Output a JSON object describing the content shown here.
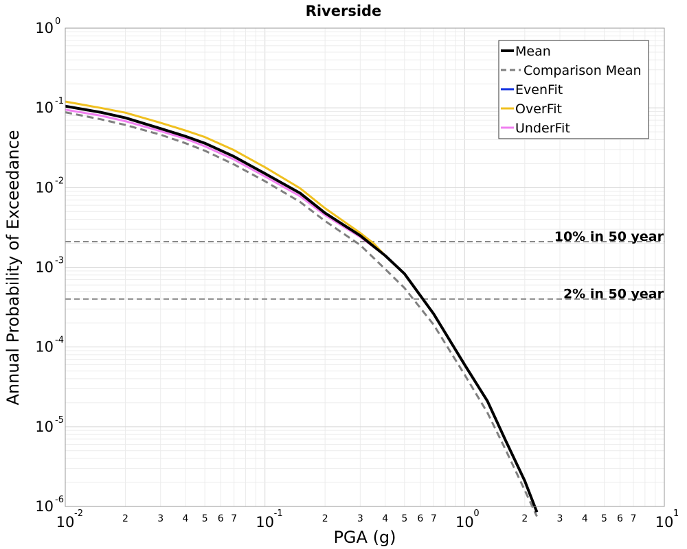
{
  "chart_data": {
    "type": "line",
    "title": "Riverside",
    "xlabel": "PGA (g)",
    "ylabel": "Annual Probability of Exceedance",
    "xscale": "log",
    "yscale": "log",
    "xlim": [
      0.01,
      10
    ],
    "ylim": [
      1e-06,
      1
    ],
    "grid": true,
    "legend_position": "top-right",
    "x_major_ticks": [
      {
        "x": 0.01,
        "base": "10",
        "exp": "-2"
      },
      {
        "x": 0.1,
        "base": "10",
        "exp": "-1"
      },
      {
        "x": 1,
        "base": "10",
        "exp": "0"
      },
      {
        "x": 10,
        "base": "10",
        "exp": "1"
      }
    ],
    "x_minor_labels": [
      "2",
      "3",
      "4",
      "5",
      "6",
      "7"
    ],
    "y_major_ticks": [
      {
        "y": 1,
        "base": "10",
        "exp": "0"
      },
      {
        "y": 0.1,
        "base": "10",
        "exp": "-1"
      },
      {
        "y": 0.01,
        "base": "10",
        "exp": "-2"
      },
      {
        "y": 0.001,
        "base": "10",
        "exp": "-3"
      },
      {
        "y": 0.0001,
        "base": "10",
        "exp": "-4"
      },
      {
        "y": 1e-05,
        "base": "10",
        "exp": "-5"
      },
      {
        "y": 1e-06,
        "base": "10",
        "exp": "-6"
      }
    ],
    "reference_lines": [
      {
        "label": "10% in 50 year",
        "y": 0.0021,
        "color": "#808080"
      },
      {
        "label": "2% in 50 year",
        "y": 0.0004,
        "color": "#808080"
      }
    ],
    "series": [
      {
        "name": "Mean",
        "color": "#000000",
        "style": "solid",
        "x": [
          0.01,
          0.015,
          0.02,
          0.03,
          0.04,
          0.05,
          0.07,
          0.1,
          0.15,
          0.2,
          0.3,
          0.4,
          0.5,
          0.7,
          1.0,
          1.3,
          1.6,
          2.0,
          2.3
        ],
        "y": [
          0.105,
          0.088,
          0.075,
          0.055,
          0.044,
          0.036,
          0.0245,
          0.015,
          0.0085,
          0.0048,
          0.0025,
          0.0014,
          0.00083,
          0.00026,
          6e-05,
          2.1e-05,
          6.8e-06,
          2.1e-06,
          8.5e-07
        ]
      },
      {
        "name": "Comparison Mean",
        "color": "#808080",
        "style": "dashed",
        "x": [
          0.01,
          0.015,
          0.02,
          0.03,
          0.04,
          0.05,
          0.07,
          0.1,
          0.15,
          0.2,
          0.3,
          0.4,
          0.5,
          0.7,
          1.0,
          1.3,
          1.6,
          2.0,
          2.3
        ],
        "y": [
          0.088,
          0.072,
          0.061,
          0.046,
          0.036,
          0.029,
          0.0195,
          0.012,
          0.0066,
          0.0038,
          0.0019,
          0.00095,
          0.00055,
          0.00019,
          4.5e-05,
          1.5e-05,
          5.2e-06,
          1.6e-06,
          7.5e-07
        ]
      },
      {
        "name": "EvenFit",
        "color": "#1030e0",
        "style": "solid",
        "x": [
          0.01,
          0.015,
          0.02,
          0.03,
          0.04,
          0.05,
          0.07,
          0.1,
          0.15,
          0.2,
          0.3,
          0.4,
          0.5,
          0.7,
          1.0,
          1.3,
          1.6,
          2.0,
          2.3
        ],
        "y": [
          0.105,
          0.088,
          0.075,
          0.055,
          0.044,
          0.036,
          0.0245,
          0.015,
          0.0085,
          0.0048,
          0.0025,
          0.0014,
          0.00083,
          0.00026,
          6e-05,
          2.1e-05,
          6.8e-06,
          2.1e-06,
          8.5e-07
        ]
      },
      {
        "name": "OverFit",
        "color": "#f0c020",
        "style": "solid",
        "x": [
          0.01,
          0.015,
          0.02,
          0.03,
          0.04,
          0.05,
          0.07,
          0.1,
          0.15,
          0.2,
          0.3,
          0.35,
          0.4
        ],
        "y": [
          0.12,
          0.1,
          0.087,
          0.065,
          0.052,
          0.043,
          0.0295,
          0.018,
          0.0098,
          0.0055,
          0.0027,
          0.002,
          0.0014
        ]
      },
      {
        "name": "UnderFit",
        "color": "#f080f0",
        "style": "solid",
        "x": [
          0.01,
          0.015,
          0.02,
          0.03,
          0.04,
          0.05,
          0.07,
          0.1,
          0.15,
          0.2,
          0.3,
          0.35,
          0.4
        ],
        "y": [
          0.095,
          0.08,
          0.068,
          0.051,
          0.041,
          0.033,
          0.0225,
          0.0138,
          0.0078,
          0.0045,
          0.0024,
          0.0018,
          0.0014
        ]
      }
    ]
  }
}
